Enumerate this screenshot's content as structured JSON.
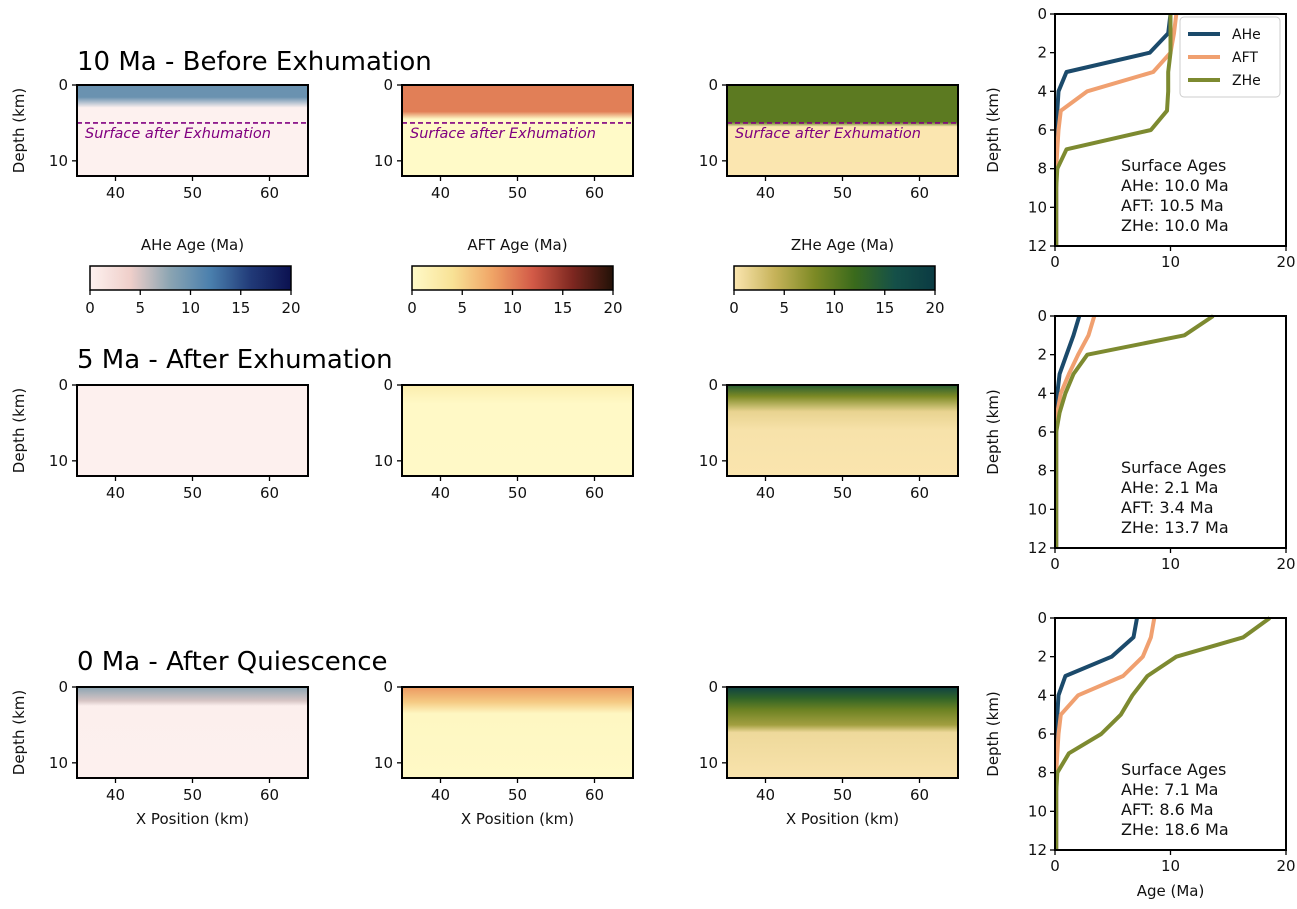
{
  "chart_data": {
    "type": "heatmap",
    "colormaps": {
      "ahe": {
        "name": "AHe Age (Ma)",
        "stops": [
          "#fdf1ef",
          "#efcfca",
          "#8aa4b2",
          "#4a7fad",
          "#213a78",
          "#0b1150"
        ]
      },
      "aft": {
        "name": "AFT Age (Ma)",
        "stops": [
          "#fffac8",
          "#f8e296",
          "#f0a466",
          "#d25a47",
          "#7d2720",
          "#221107"
        ]
      },
      "zhe": {
        "name": "ZHe Age (Ma)",
        "stops": [
          "#fbe6b0",
          "#c7b35a",
          "#7d8a25",
          "#3a6a1c",
          "#155048",
          "#0a3a42"
        ]
      }
    },
    "colorbar": {
      "ticks": [
        0,
        5,
        10,
        15,
        20
      ],
      "range": [
        0,
        20
      ]
    },
    "map_axes": {
      "xlim": [
        35,
        65
      ],
      "xticks": [
        40,
        50,
        60
      ],
      "ylim": [
        12,
        0
      ],
      "yticks": [
        0,
        10
      ],
      "ylabel": "Depth (km)",
      "xlabel": "X Position (km)"
    },
    "profile_axes": {
      "xlim": [
        0,
        20
      ],
      "xticks": [
        0,
        10,
        20
      ],
      "ylim": [
        12,
        0
      ],
      "yticks": [
        0,
        2,
        4,
        6,
        8,
        10,
        12
      ],
      "ylabel": "Depth (km)",
      "xlabel": "Age (Ma)"
    },
    "legend": {
      "position": "top-right",
      "entries": [
        {
          "name": "AHe",
          "color": "#1b4a6b"
        },
        {
          "name": "AFT",
          "color": "#f0a070"
        },
        {
          "name": "ZHe",
          "color": "#7d8a30"
        }
      ]
    },
    "rows": [
      {
        "title": "10 Ma - Before Exhumation",
        "surface_line": {
          "depth": 5,
          "label": "Surface after Exhumation",
          "color": "#800080"
        },
        "maps": {
          "ahe": [
            [
              0,
              10
            ],
            [
              1.6,
              10
            ],
            [
              3,
              0
            ],
            [
              12,
              0
            ]
          ],
          "aft": [
            [
              0,
              10
            ],
            [
              3.5,
              10
            ],
            [
              4.5,
              0
            ],
            [
              12,
              0
            ]
          ],
          "zhe": [
            [
              0,
              10
            ],
            [
              4.9,
              10
            ],
            [
              5.5,
              0
            ],
            [
              12,
              0
            ]
          ]
        },
        "profiles": {
          "AHe": {
            "depth": [
              0,
              1,
              2,
              3,
              4,
              5,
              6,
              7,
              8,
              9,
              10,
              11,
              12
            ],
            "age": [
              10.0,
              9.8,
              8.2,
              1.0,
              0.3,
              0.2,
              0.2,
              0.1,
              0.1,
              0.1,
              0.1,
              0.1,
              0.1
            ]
          },
          "AFT": {
            "depth": [
              0,
              1,
              2,
              3,
              4,
              5,
              6,
              7,
              8,
              9,
              10,
              11,
              12
            ],
            "age": [
              10.5,
              10.3,
              10.0,
              8.5,
              2.8,
              0.5,
              0.3,
              0.2,
              0.1,
              0.1,
              0.1,
              0.1,
              0.1
            ]
          },
          "ZHe": {
            "depth": [
              0,
              1,
              2,
              3,
              4,
              5,
              6,
              7,
              8,
              9,
              10,
              11,
              12
            ],
            "age": [
              10.0,
              10.0,
              10.0,
              9.8,
              9.8,
              9.7,
              8.3,
              1.0,
              0.2,
              0.1,
              0.1,
              0.1,
              0.1
            ]
          }
        },
        "surface_ages": {
          "heading": "Surface Ages",
          "lines": [
            "AHe: 10.0 Ma",
            "AFT: 10.5 Ma",
            "ZHe: 10.0 Ma"
          ]
        }
      },
      {
        "title": "5 Ma - After Exhumation",
        "maps": {
          "ahe": [
            [
              0,
              0.1
            ],
            [
              12,
              0.1
            ]
          ],
          "aft": [
            [
              0,
              2.2
            ],
            [
              2.5,
              0.2
            ],
            [
              12,
              0.1
            ]
          ],
          "zhe": [
            [
              0,
              14
            ],
            [
              1.5,
              8
            ],
            [
              3.5,
              1.5
            ],
            [
              6,
              0.3
            ],
            [
              12,
              0.1
            ]
          ]
        },
        "profiles": {
          "AHe": {
            "depth": [
              0,
              1,
              2,
              3,
              4,
              5,
              6,
              7,
              8,
              9,
              10,
              11,
              12
            ],
            "age": [
              2.1,
              1.6,
              1.0,
              0.4,
              0.2,
              0.1,
              0.1,
              0.1,
              0.1,
              0.1,
              0.1,
              0.1,
              0.1
            ]
          },
          "AFT": {
            "depth": [
              0,
              1,
              2,
              3,
              4,
              5,
              6,
              7,
              8,
              9,
              10,
              11,
              12
            ],
            "age": [
              3.4,
              2.9,
              2.0,
              1.2,
              0.5,
              0.2,
              0.1,
              0.1,
              0.1,
              0.1,
              0.1,
              0.1,
              0.1
            ]
          },
          "ZHe": {
            "depth": [
              0,
              1,
              2,
              3,
              4,
              5,
              6,
              7,
              8,
              9,
              10,
              11,
              12
            ],
            "age": [
              13.7,
              11.2,
              2.8,
              1.6,
              0.9,
              0.4,
              0.1,
              0.1,
              0.1,
              0.1,
              0.1,
              0.1,
              0.1
            ]
          }
        },
        "surface_ages": {
          "heading": "Surface Ages",
          "lines": [
            "AHe: 2.1 Ma",
            "AFT: 3.4 Ma",
            "ZHe: 13.7 Ma"
          ]
        }
      },
      {
        "title": "0 Ma - After Quiescence",
        "maps": {
          "ahe": [
            [
              0,
              8
            ],
            [
              1.8,
              5
            ],
            [
              2.5,
              0.2
            ],
            [
              12,
              0.1
            ]
          ],
          "aft": [
            [
              0,
              8.6
            ],
            [
              2.0,
              5.5
            ],
            [
              3.5,
              0.5
            ],
            [
              12,
              0.2
            ]
          ],
          "zhe": [
            [
              0,
              18.6
            ],
            [
              1.5,
              13
            ],
            [
              3.0,
              9
            ],
            [
              5.0,
              6
            ],
            [
              6.0,
              1
            ],
            [
              12,
              0.2
            ]
          ]
        },
        "profiles": {
          "AHe": {
            "depth": [
              0,
              1,
              2,
              3,
              4,
              5,
              6,
              7,
              8,
              9,
              10,
              11,
              12
            ],
            "age": [
              7.1,
              6.8,
              4.9,
              0.9,
              0.3,
              0.2,
              0.2,
              0.1,
              0.1,
              0.1,
              0.1,
              0.1,
              0.1
            ]
          },
          "AFT": {
            "depth": [
              0,
              1,
              2,
              3,
              4,
              5,
              6,
              7,
              8,
              9,
              10,
              11,
              12
            ],
            "age": [
              8.6,
              8.3,
              7.6,
              5.9,
              2.0,
              0.5,
              0.3,
              0.2,
              0.1,
              0.1,
              0.1,
              0.1,
              0.1
            ]
          },
          "ZHe": {
            "depth": [
              0,
              1,
              2,
              3,
              4,
              5,
              6,
              7,
              8,
              9,
              10,
              11,
              12
            ],
            "age": [
              18.6,
              16.3,
              10.5,
              8.0,
              6.7,
              5.7,
              4.0,
              1.2,
              0.2,
              0.1,
              0.1,
              0.1,
              0.1
            ]
          }
        },
        "surface_ages": {
          "heading": "Surface Ages",
          "lines": [
            "AHe: 7.1 Ma",
            "AFT: 8.6 Ma",
            "ZHe: 18.6 Ma"
          ]
        }
      }
    ]
  }
}
